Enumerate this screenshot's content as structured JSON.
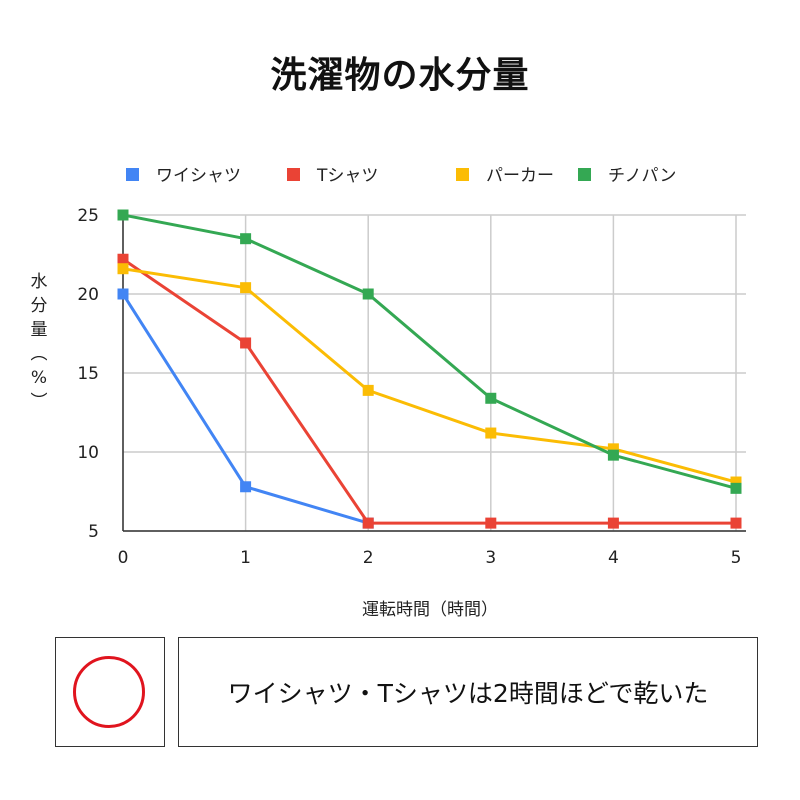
{
  "chart_data": {
    "type": "line",
    "title": "洗濯物の水分量",
    "xlabel": "運転時間（時間）",
    "ylabel": "水分量（%）",
    "x": [
      0,
      1,
      2,
      3,
      4,
      5
    ],
    "xlim": [
      0,
      5
    ],
    "ylim": [
      5,
      25
    ],
    "yticks": [
      5,
      10,
      15,
      20,
      25
    ],
    "grid": true,
    "legend_position": "top",
    "series": [
      {
        "name": "ワイシャツ",
        "color": "#4285f4",
        "values": [
          20.0,
          7.8,
          5.5,
          null,
          null,
          null
        ]
      },
      {
        "name": "Tシャツ",
        "color": "#ea4335",
        "values": [
          22.2,
          16.9,
          5.5,
          5.5,
          5.5,
          5.5
        ]
      },
      {
        "name": "パーカー",
        "color": "#fbbc04",
        "values": [
          21.6,
          20.4,
          13.9,
          11.2,
          10.2,
          8.1
        ]
      },
      {
        "name": "チノパン",
        "color": "#34a853",
        "values": [
          25.0,
          23.5,
          20.0,
          13.4,
          9.8,
          7.7
        ]
      }
    ]
  },
  "annotation": {
    "mark": "red-circle",
    "mark_color": "#e0141e",
    "text": "ワイシャツ・Tシャツは2時間ほどで乾いた"
  }
}
